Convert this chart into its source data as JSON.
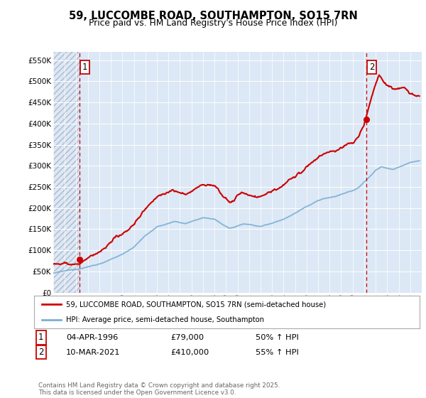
{
  "title": "59, LUCCOMBE ROAD, SOUTHAMPTON, SO15 7RN",
  "subtitle": "Price paid vs. HM Land Registry's House Price Index (HPI)",
  "ylim": [
    0,
    570000
  ],
  "yticks": [
    0,
    50000,
    100000,
    150000,
    200000,
    250000,
    300000,
    350000,
    400000,
    450000,
    500000,
    550000
  ],
  "ytick_labels": [
    "£0",
    "£50K",
    "£100K",
    "£150K",
    "£200K",
    "£250K",
    "£300K",
    "£350K",
    "£400K",
    "£450K",
    "£500K",
    "£550K"
  ],
  "sale1_date": 1996.26,
  "sale1_price": 79000,
  "sale2_date": 2021.19,
  "sale2_price": 410000,
  "line_color_price": "#cc0000",
  "line_color_hpi": "#7bafd4",
  "background_color": "#dce8f5",
  "grid_color": "#ffffff",
  "legend1": "59, LUCCOMBE ROAD, SOUTHAMPTON, SO15 7RN (semi-detached house)",
  "legend2": "HPI: Average price, semi-detached house, Southampton",
  "note1_num": "1",
  "note1_date": "04-APR-1996",
  "note1_price": "£79,000",
  "note1_hpi": "50% ↑ HPI",
  "note2_num": "2",
  "note2_date": "10-MAR-2021",
  "note2_price": "£410,000",
  "note2_hpi": "55% ↑ HPI",
  "footer": "Contains HM Land Registry data © Crown copyright and database right 2025.\nThis data is licensed under the Open Government Licence v3.0.",
  "xmin": 1994,
  "xmax": 2026
}
